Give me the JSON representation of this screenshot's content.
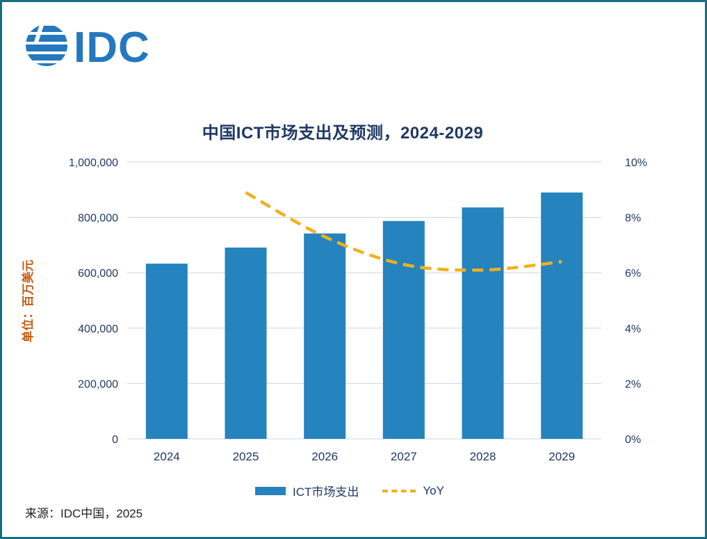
{
  "logo": {
    "text": "IDC"
  },
  "title": "中国ICT市场支出及预测，2024-2029",
  "source": "来源：IDC中国，2025",
  "colors": {
    "bar": "#2583BE",
    "line": "#F2B01E",
    "title_text": "#1F3864",
    "axis_text": "#1F3864",
    "ylabel_text": "#C55A11",
    "grid": "#C8D4EA",
    "border": "#166E7F",
    "logo": "#2478BE",
    "source_text": "#1f1f1f"
  },
  "chart_data": {
    "type": "bar",
    "title": "中国ICT市场支出及预测，2024-2029",
    "categories": [
      "2024",
      "2025",
      "2026",
      "2027",
      "2028",
      "2029"
    ],
    "series": [
      {
        "name": "ICT市场支出",
        "type": "bar",
        "axis": "left",
        "values": [
          633000,
          691000,
          742000,
          787000,
          836000,
          890000
        ]
      },
      {
        "name": "YoY",
        "type": "line",
        "axis": "right",
        "values": [
          null,
          8.9,
          7.3,
          6.3,
          6.1,
          6.4
        ]
      }
    ],
    "left_axis": {
      "label": "单位：百万美元",
      "min": 0,
      "max": 1000000,
      "step": 200000,
      "ticks": [
        "0",
        "200,000",
        "400,000",
        "600,000",
        "800,000",
        "1,000,000"
      ]
    },
    "right_axis": {
      "min": 0,
      "max": 10,
      "step": 2,
      "ticks": [
        "0%",
        "2%",
        "4%",
        "6%",
        "8%",
        "10%"
      ]
    },
    "grid": true,
    "legend_position": "bottom"
  }
}
